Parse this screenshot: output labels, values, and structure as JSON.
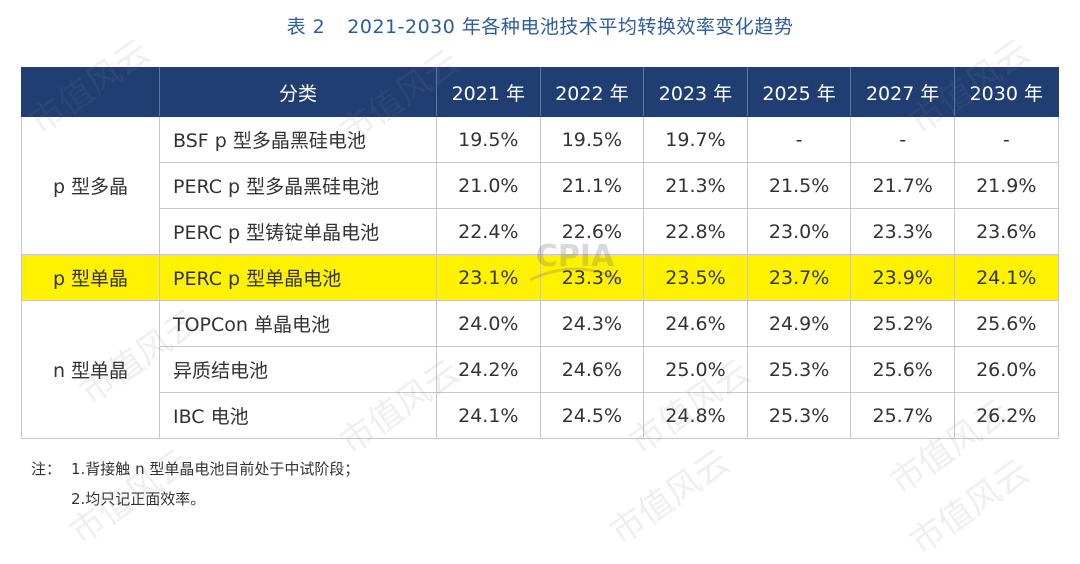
{
  "title": {
    "label": "表 2",
    "text": "2021-2030 年各种电池技术平均转换效率变化趋势"
  },
  "table": {
    "headers": [
      "分类",
      "2021 年",
      "2022 年",
      "2023 年",
      "2025 年",
      "2027 年",
      "2030 年"
    ],
    "groups": [
      {
        "category": "p 型多晶",
        "rows": [
          {
            "name": "BSF p 型多晶黑硅电池",
            "values": [
              "19.5%",
              "19.5%",
              "19.7%",
              "-",
              "-",
              "-"
            ]
          },
          {
            "name": "PERC p 型多晶黑硅电池",
            "values": [
              "21.0%",
              "21.1%",
              "21.3%",
              "21.5%",
              "21.7%",
              "21.9%"
            ]
          },
          {
            "name": "PERC p 型铸锭单晶电池",
            "values": [
              "22.4%",
              "22.6%",
              "22.8%",
              "23.0%",
              "23.3%",
              "23.6%"
            ]
          }
        ]
      },
      {
        "category": "p 型单晶",
        "highlight": true,
        "rows": [
          {
            "name": "PERC p 型单晶电池",
            "values": [
              "23.1%",
              "23.3%",
              "23.5%",
              "23.7%",
              "23.9%",
              "24.1%"
            ]
          }
        ]
      },
      {
        "category": "n 型单晶",
        "rows": [
          {
            "name": "TOPCon 单晶电池",
            "values": [
              "24.0%",
              "24.3%",
              "24.6%",
              "24.9%",
              "25.2%",
              "25.6%"
            ]
          },
          {
            "name": "异质结电池",
            "values": [
              "24.2%",
              "24.6%",
              "25.0%",
              "25.3%",
              "25.6%",
              "26.0%"
            ]
          },
          {
            "name": "IBC 电池",
            "values": [
              "24.1%",
              "24.5%",
              "24.8%",
              "25.3%",
              "25.7%",
              "26.2%"
            ]
          }
        ]
      }
    ],
    "highlight_color": "#fff200",
    "header_color": "#213e73"
  },
  "notes": {
    "label": "注：",
    "items": [
      "1.背接触 n 型单晶电池目前处于中试阶段；",
      "2.均只记正面效率。"
    ]
  },
  "watermark": {
    "text": "市值风云"
  }
}
